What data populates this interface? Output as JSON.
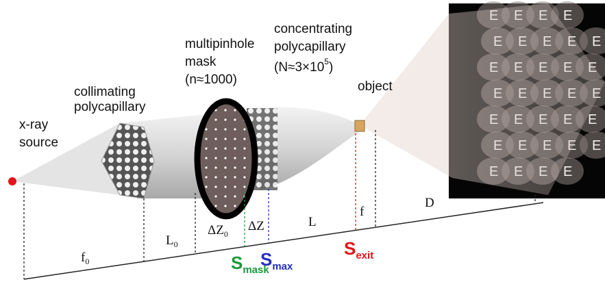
{
  "labels": {
    "source": [
      "x-ray",
      "source"
    ],
    "collimating": [
      "collimating",
      "polycapillary"
    ],
    "mask": [
      "multipinhole",
      "mask",
      "(n≈1000)"
    ],
    "concentrating": {
      "lines": [
        "concentrating",
        "polycapillary"
      ],
      "prefix": "(N≈3×10",
      "sup": "5",
      "suffix": ")"
    },
    "object": "object"
  },
  "distances": {
    "f0": {
      "base": "f",
      "sub": "0"
    },
    "L0": {
      "base": "L",
      "sub": "0"
    },
    "dZ0": {
      "base": "ΔZ",
      "sub": "0"
    },
    "dZ": "ΔZ",
    "L": "L",
    "f": "f",
    "D": "D"
  },
  "planes": {
    "mask": {
      "base": "S",
      "sub": "mask"
    },
    "max": {
      "base": "S",
      "sub": "max"
    },
    "exit": {
      "base": "S",
      "sub": "exit"
    }
  },
  "screen": {
    "letter": "E"
  }
}
